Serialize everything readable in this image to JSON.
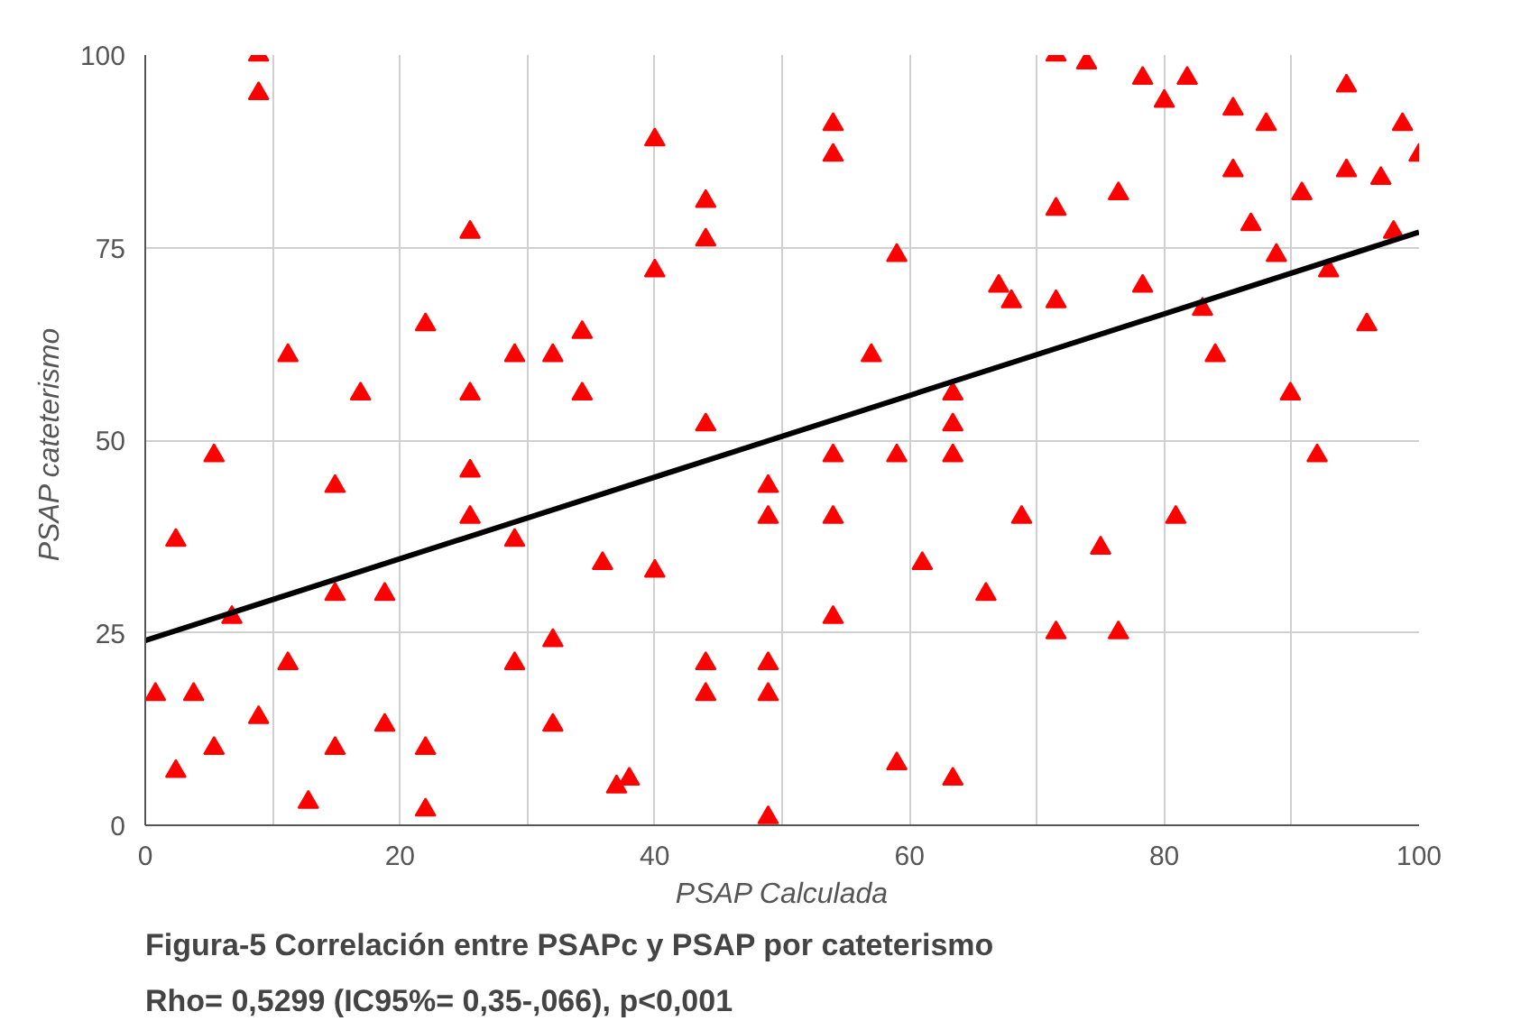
{
  "chart_data": {
    "type": "scatter",
    "xlabel": "PSAP Calculada",
    "ylabel": "PSAP  cateterismo",
    "annotations": [
      "Figura-5  Correlación entre PSAPc  y  PSAP por cateterismo",
      "Rho= 0,5299 (IC95%= 0,35-,066), p<0,001"
    ],
    "xlim": [
      0,
      100
    ],
    "ylim": [
      0,
      100
    ],
    "xticks": [
      0,
      {
        "value": 10,
        "label": null
      },
      20,
      {
        "value": 30,
        "label": null
      },
      40,
      {
        "value": 50,
        "label": null
      },
      60,
      {
        "value": 70,
        "label": null
      },
      80,
      {
        "value": 90,
        "label": null
      },
      100
    ],
    "yticks": [
      0,
      25,
      50,
      75,
      100
    ],
    "grid": true,
    "marker": "triangle",
    "series": [
      {
        "color": "#ff0000",
        "x": [
          0.8,
          2.4,
          2.4,
          3.8,
          5.4,
          5.4,
          6.8,
          8.9,
          8.9,
          8.9,
          11.2,
          11.2,
          12.8,
          14.9,
          14.9,
          14.9,
          16.9,
          18.8,
          18.8,
          22,
          22,
          22,
          25.5,
          25.5,
          25.5,
          25.5,
          29,
          29,
          29,
          32,
          32,
          32,
          34.3,
          34.3,
          35.9,
          37,
          38,
          40,
          40,
          40,
          44,
          44,
          44,
          44,
          44,
          48.9,
          48.9,
          48.9,
          48.9,
          48.9,
          54,
          54,
          54,
          54,
          54,
          57,
          59,
          59,
          59,
          61,
          63.4,
          63.4,
          63.4,
          63.4,
          66,
          67,
          68,
          68.8,
          71.5,
          71.5,
          71.5,
          71.5,
          73.9,
          75,
          76.4,
          76.4,
          78.3,
          78.3,
          80,
          80.9,
          81.8,
          83,
          84,
          85.4,
          85.4,
          86.8,
          88,
          88.8,
          89.9,
          90.8,
          92,
          92.9,
          94.3,
          94.3,
          95.9,
          97,
          98,
          98.7,
          100
        ],
        "values": [
          17,
          37,
          7,
          17,
          48,
          10,
          27,
          100,
          95,
          14,
          61,
          21,
          3,
          44,
          30,
          10,
          56,
          30,
          13,
          65,
          10,
          2,
          77,
          56,
          46,
          40,
          61,
          37,
          21,
          61,
          24,
          13,
          64,
          56,
          34,
          5,
          6,
          89,
          72,
          33,
          81,
          76,
          52,
          21,
          17,
          44,
          40,
          21,
          17,
          1,
          91,
          87,
          48,
          40,
          27,
          61,
          74,
          48,
          8,
          34,
          56,
          52,
          48,
          6,
          30,
          70,
          68,
          40,
          100,
          80,
          68,
          25,
          99,
          36,
          82,
          25,
          97,
          70,
          94,
          40,
          97,
          67,
          61,
          93,
          85,
          78,
          91,
          74,
          56,
          82,
          48,
          72,
          96,
          85,
          65,
          84,
          77,
          91,
          87
        ]
      },
      {
        "type": "line",
        "color": "#000000",
        "marker": "none",
        "x": [
          0,
          100
        ],
        "values": [
          24,
          77
        ]
      }
    ]
  }
}
